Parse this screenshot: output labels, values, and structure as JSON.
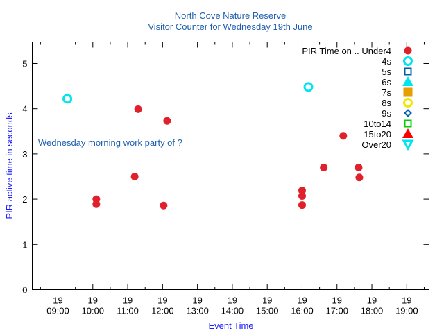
{
  "chart_data": {
    "type": "scatter",
    "title": "North Cove Nature Reserve",
    "subtitle": "Visitor Counter for Wednesday 19th June",
    "xlabel": "Event Time",
    "ylabel": "PIR active time in seconds",
    "annotation": "Wednesday morning work party of ?",
    "xlim": [
      8.264,
      19.64
    ],
    "ylim": [
      0,
      5.475
    ],
    "yticks": [
      0,
      1,
      2,
      3,
      4,
      5
    ],
    "xticks": [
      {
        "value": 9,
        "day": "19",
        "time": "09:00"
      },
      {
        "value": 10,
        "day": "19",
        "time": "10:00"
      },
      {
        "value": 11,
        "day": "19",
        "time": "11:00"
      },
      {
        "value": 12,
        "day": "19",
        "time": "12:00"
      },
      {
        "value": 13,
        "day": "19",
        "time": "13:00"
      },
      {
        "value": 14,
        "day": "19",
        "time": "14:00"
      },
      {
        "value": 15,
        "day": "19",
        "time": "15:00"
      },
      {
        "value": 16,
        "day": "19",
        "time": "16:00"
      },
      {
        "value": 17,
        "day": "19",
        "time": "17:00"
      },
      {
        "value": 18,
        "day": "19",
        "time": "18:00"
      },
      {
        "value": 19,
        "day": "19",
        "time": "19:00"
      }
    ],
    "grid": false,
    "legend_placement": "top-right",
    "series": [
      {
        "name": "PIR Time on .. Under4",
        "marker": "filled-circle",
        "color": "#e0202a",
        "points": [
          [
            10.1,
            2.0
          ],
          [
            10.1,
            1.89
          ],
          [
            11.2,
            2.5
          ],
          [
            11.3,
            3.99
          ],
          [
            12.03,
            1.86
          ],
          [
            12.13,
            3.73
          ],
          [
            16.0,
            2.19
          ],
          [
            16.0,
            2.07
          ],
          [
            16.0,
            1.87
          ],
          [
            16.62,
            2.7
          ],
          [
            17.18,
            3.4
          ],
          [
            17.62,
            2.7
          ],
          [
            17.64,
            2.48
          ]
        ]
      },
      {
        "name": "4s",
        "marker": "open-circle",
        "color": "#00e5ee",
        "points": [
          [
            9.27,
            4.22
          ],
          [
            16.18,
            4.48
          ]
        ]
      },
      {
        "name": "5s",
        "marker": "open-square",
        "color": "#0060ad",
        "points": []
      },
      {
        "name": "6s",
        "marker": "filled-triangle-up",
        "color": "#00e5ee",
        "points": []
      },
      {
        "name": "7s",
        "marker": "filled-square",
        "color": "#e69f00",
        "points": []
      },
      {
        "name": "8s",
        "marker": "open-circle",
        "color": "#f0e800",
        "points": []
      },
      {
        "name": "9s",
        "marker": "open-diamond",
        "color": "#0060ad",
        "points": []
      },
      {
        "name": "10to14",
        "marker": "open-square",
        "color": "#00d000",
        "points": []
      },
      {
        "name": "15to20",
        "marker": "filled-triangle-up",
        "color": "#ff0000",
        "points": []
      },
      {
        "name": "Over20",
        "marker": "open-triangle-down",
        "color": "#00e5ee",
        "points": []
      }
    ]
  }
}
